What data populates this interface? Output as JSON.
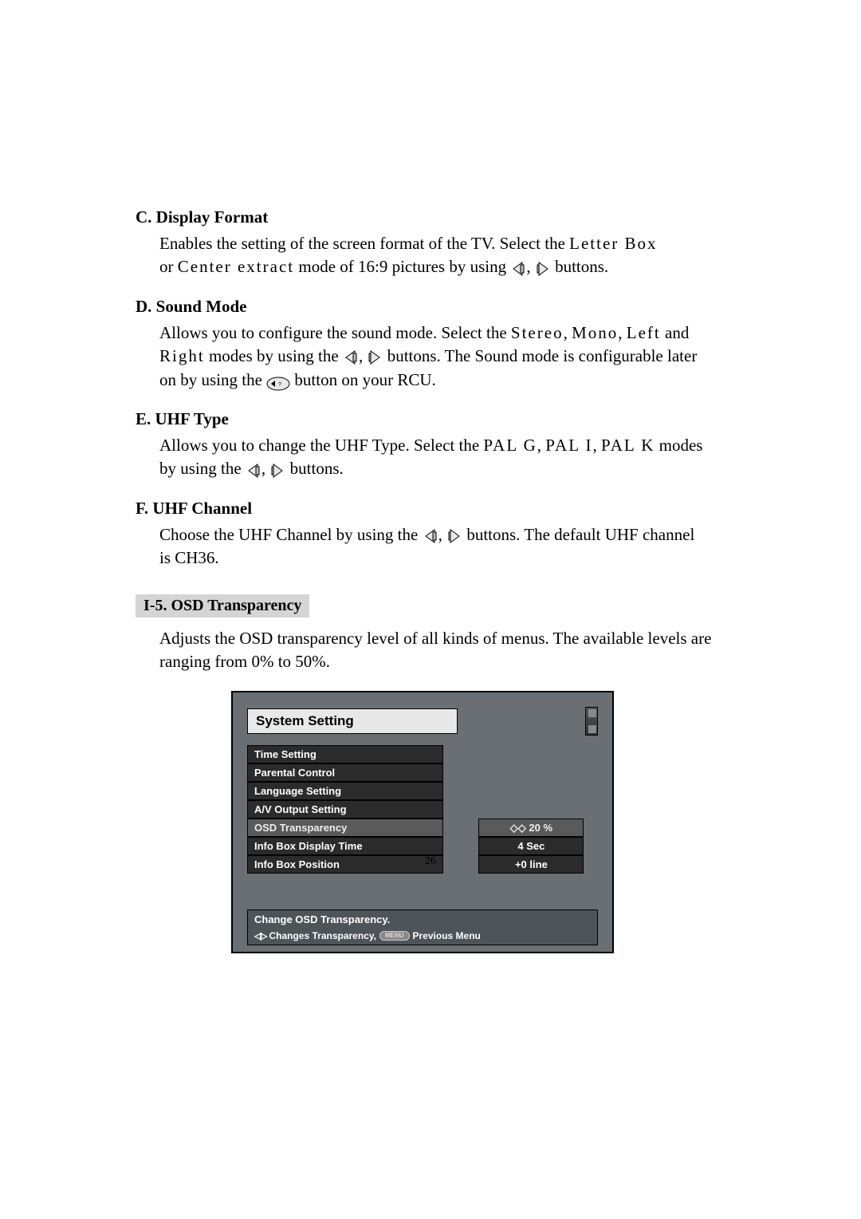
{
  "sections": {
    "c": {
      "title": "C. Display Format",
      "line1a": "Enables the setting of the screen format of the TV. Select the ",
      "line1b": "Letter Box",
      "line2a": "or ",
      "line2b": "Center extract",
      "line2c": " mode of 16:9 pictures by using ",
      "line2d": " buttons."
    },
    "d": {
      "title": "D. Sound Mode",
      "line1a": "Allows you to configure the sound mode. Select the ",
      "line1b": "Stereo",
      "line1c": ", ",
      "line1d": "Mono",
      "line1e": ", ",
      "line1f": "Left",
      "line1g": " and",
      "line2a": "Right",
      "line2b": " modes by using the ",
      "line2c": " buttons. The Sound mode is configurable later",
      "line3a": "on by using the ",
      "line3b": " button on your RCU."
    },
    "e": {
      "title": "E. UHF Type",
      "line1a": "Allows you to change the UHF Type. Select the ",
      "line1b": "PAL G",
      "line1c": ", ",
      "line1d": "PAL I",
      "line1e": ", ",
      "line1f": "PAL K",
      "line1g": " modes",
      "line2a": "by using the ",
      "line2b": " buttons."
    },
    "f": {
      "title": "F. UHF Channel",
      "line1a": "Choose the UHF Channel by using the ",
      "line1b": " buttons. The default UHF channel",
      "line2a": "is CH36."
    }
  },
  "tab": "I-5. OSD Transparency",
  "para": "Adjusts the OSD transparency level of all kinds of menus. The available levels are ranging from 0% to 50%.",
  "osd": {
    "title": "System Setting",
    "items": [
      {
        "label": "Time Setting",
        "value": "",
        "selected": false
      },
      {
        "label": "Parental Control",
        "value": "",
        "selected": false
      },
      {
        "label": "Language Setting",
        "value": "",
        "selected": false
      },
      {
        "label": "A/V Output Setting",
        "value": "",
        "selected": false
      },
      {
        "label": "OSD Transparency",
        "value": "◇◇ 20 %",
        "selected": true
      },
      {
        "label": "Info Box Display Time",
        "value": "4 Sec",
        "selected": false
      },
      {
        "label": "Info Box Position",
        "value": "+0 line",
        "selected": false
      }
    ],
    "help1": "Change OSD Transparency.",
    "help2a": "Changes Transparency,",
    "help2b": "Previous Menu",
    "menu_btn": "MENU"
  },
  "pageNumber": "26"
}
